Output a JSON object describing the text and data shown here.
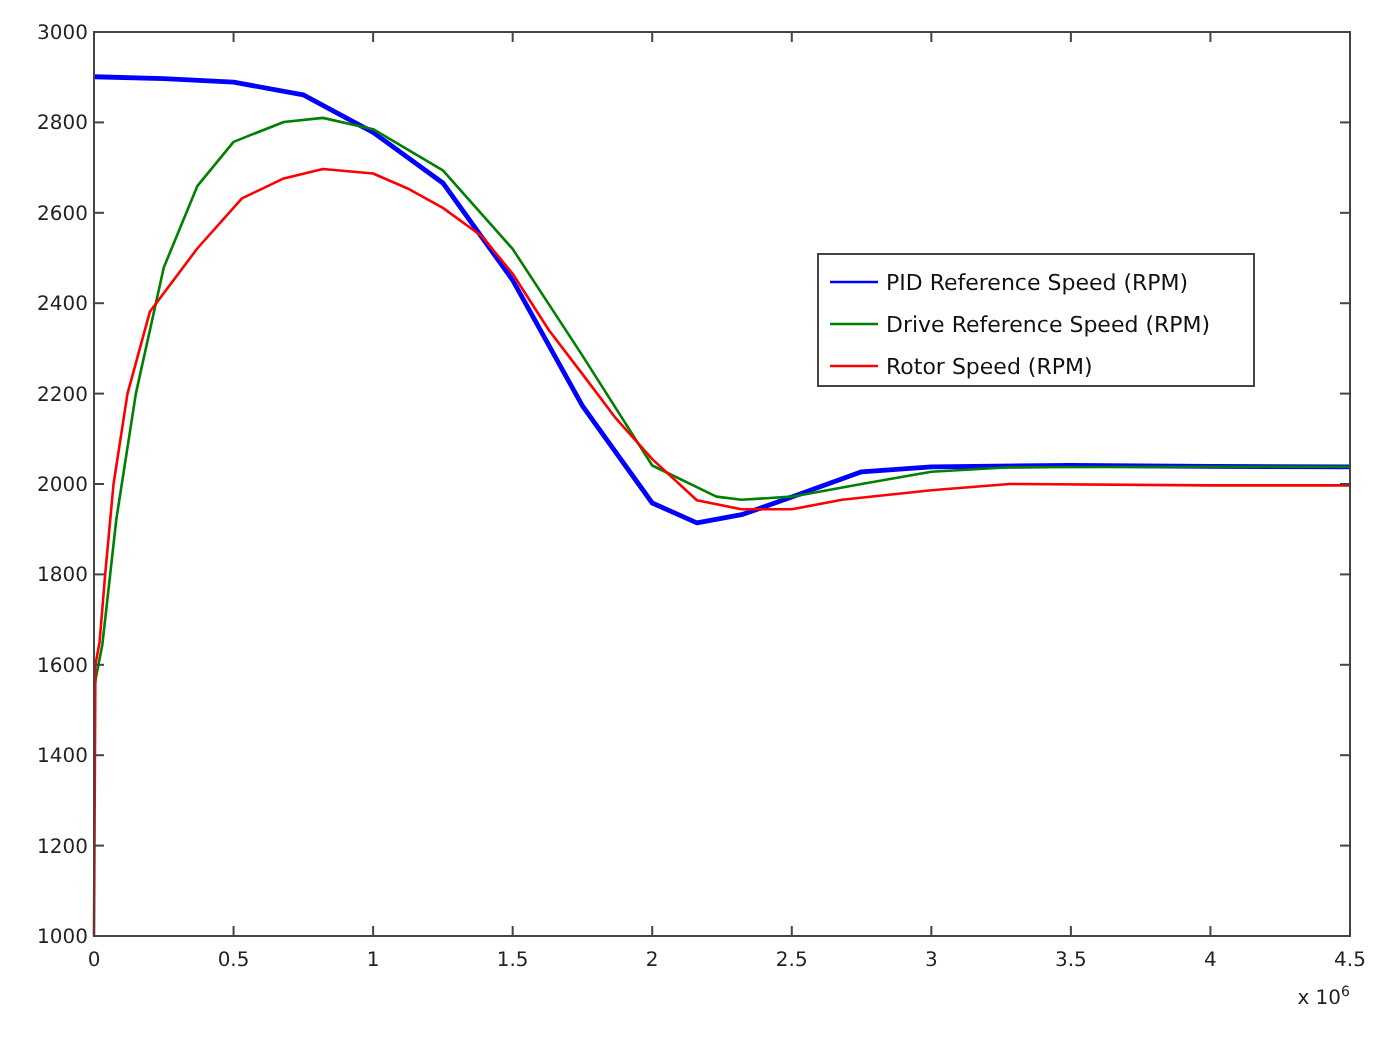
{
  "chart_data": {
    "type": "line",
    "xlim": [
      0,
      4.5
    ],
    "ylim": [
      1000,
      3000
    ],
    "xticks": [
      0,
      0.5,
      1,
      1.5,
      2,
      2.5,
      3,
      3.5,
      4,
      4.5
    ],
    "yticks": [
      1000,
      1200,
      1400,
      1600,
      1800,
      2000,
      2200,
      2400,
      2600,
      2800,
      3000
    ],
    "annotations": [
      "x 10$^{6}$"
    ],
    "legend": "right",
    "grid": false,
    "series": [
      {
        "name": "PID Reference Speed (RPM)",
        "color": "#0000ff",
        "x": [
          0,
          0.25,
          0.5,
          0.75,
          1.0,
          1.25,
          1.5,
          1.75,
          2.0,
          2.16,
          2.32,
          2.5,
          2.75,
          3.0,
          3.5,
          4.0,
          4.5
        ],
        "values": [
          2901,
          2897,
          2889,
          2861,
          2778,
          2666,
          2451,
          2173,
          1958,
          1914,
          1932,
          1971,
          2027,
          2038,
          2041,
          2039,
          2038
        ]
      },
      {
        "name": "Drive Reference Speed (RPM)",
        "color": "#008000",
        "x": [
          0,
          0.03,
          0.08,
          0.15,
          0.25,
          0.37,
          0.5,
          0.68,
          0.82,
          1.0,
          1.25,
          1.5,
          1.75,
          2.0,
          2.23,
          2.32,
          2.5,
          2.75,
          3.0,
          3.28,
          4.0,
          4.5
        ],
        "values": [
          1550,
          1645,
          1922,
          2200,
          2479,
          2659,
          2757,
          2801,
          2810,
          2785,
          2694,
          2520,
          2284,
          2041,
          1972,
          1965,
          1972,
          2000,
          2027,
          2037,
          2038,
          2038
        ]
      },
      {
        "name": "Rotor Speed (RPM)",
        "color": "#ff0000",
        "x": [
          0,
          0.005,
          0.02,
          0.04,
          0.07,
          0.12,
          0.2,
          0.37,
          0.53,
          0.68,
          0.82,
          1.0,
          1.13,
          1.25,
          1.39,
          1.5,
          1.63,
          1.75,
          1.87,
          2.0,
          2.16,
          2.32,
          2.5,
          2.68,
          3.0,
          3.28,
          4.0,
          4.5
        ],
        "values": [
          1000,
          1600,
          1650,
          1800,
          2000,
          2200,
          2381,
          2521,
          2632,
          2676,
          2697,
          2687,
          2652,
          2611,
          2548,
          2465,
          2340,
          2243,
          2145,
          2055,
          1964,
          1944,
          1944,
          1965,
          1986,
          2000,
          1997,
          1997
        ]
      }
    ]
  }
}
